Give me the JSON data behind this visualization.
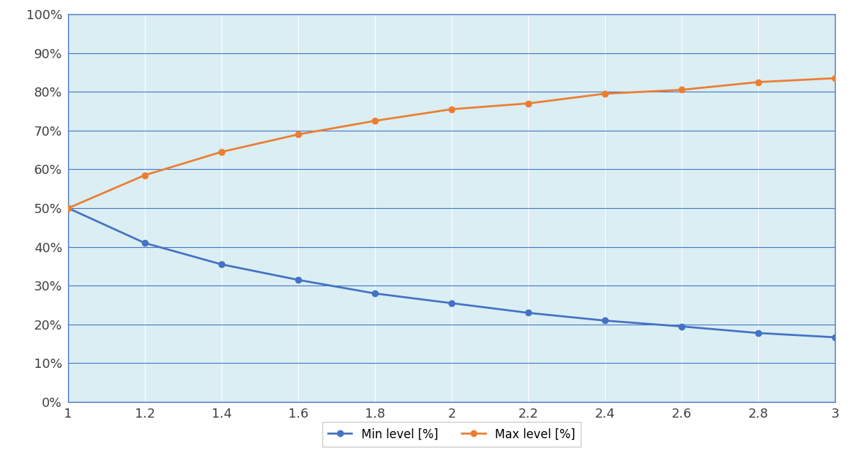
{
  "x": [
    1.0,
    1.2,
    1.4,
    1.6,
    1.8,
    2.0,
    2.2,
    2.4,
    2.6,
    2.8,
    3.0
  ],
  "min_level": [
    0.5,
    0.41,
    0.355,
    0.315,
    0.28,
    0.255,
    0.23,
    0.21,
    0.195,
    0.178,
    0.167
  ],
  "max_level": [
    0.5,
    0.585,
    0.645,
    0.69,
    0.725,
    0.755,
    0.77,
    0.795,
    0.805,
    0.825,
    0.835
  ],
  "min_color": "#4472C4",
  "max_color": "#ED7D31",
  "min_label": "Min level [%]",
  "max_label": "Max level [%]",
  "ylim": [
    0.0,
    1.0
  ],
  "xlim": [
    1.0,
    3.0
  ],
  "yticks": [
    0.0,
    0.1,
    0.2,
    0.3,
    0.4,
    0.5,
    0.6,
    0.7,
    0.8,
    0.9,
    1.0
  ],
  "xticks": [
    1.0,
    1.2,
    1.4,
    1.6,
    1.8,
    2.0,
    2.2,
    2.4,
    2.6,
    2.8,
    3.0
  ],
  "plot_bg_color": "#DAEEF3",
  "fig_bg_color": "#FFFFFF",
  "grid_color": "#FFFFFF",
  "h_grid_color": "#4472C4",
  "marker": "o",
  "marker_size": 6,
  "line_width": 2.0,
  "tick_fontsize": 13,
  "legend_fontsize": 12
}
